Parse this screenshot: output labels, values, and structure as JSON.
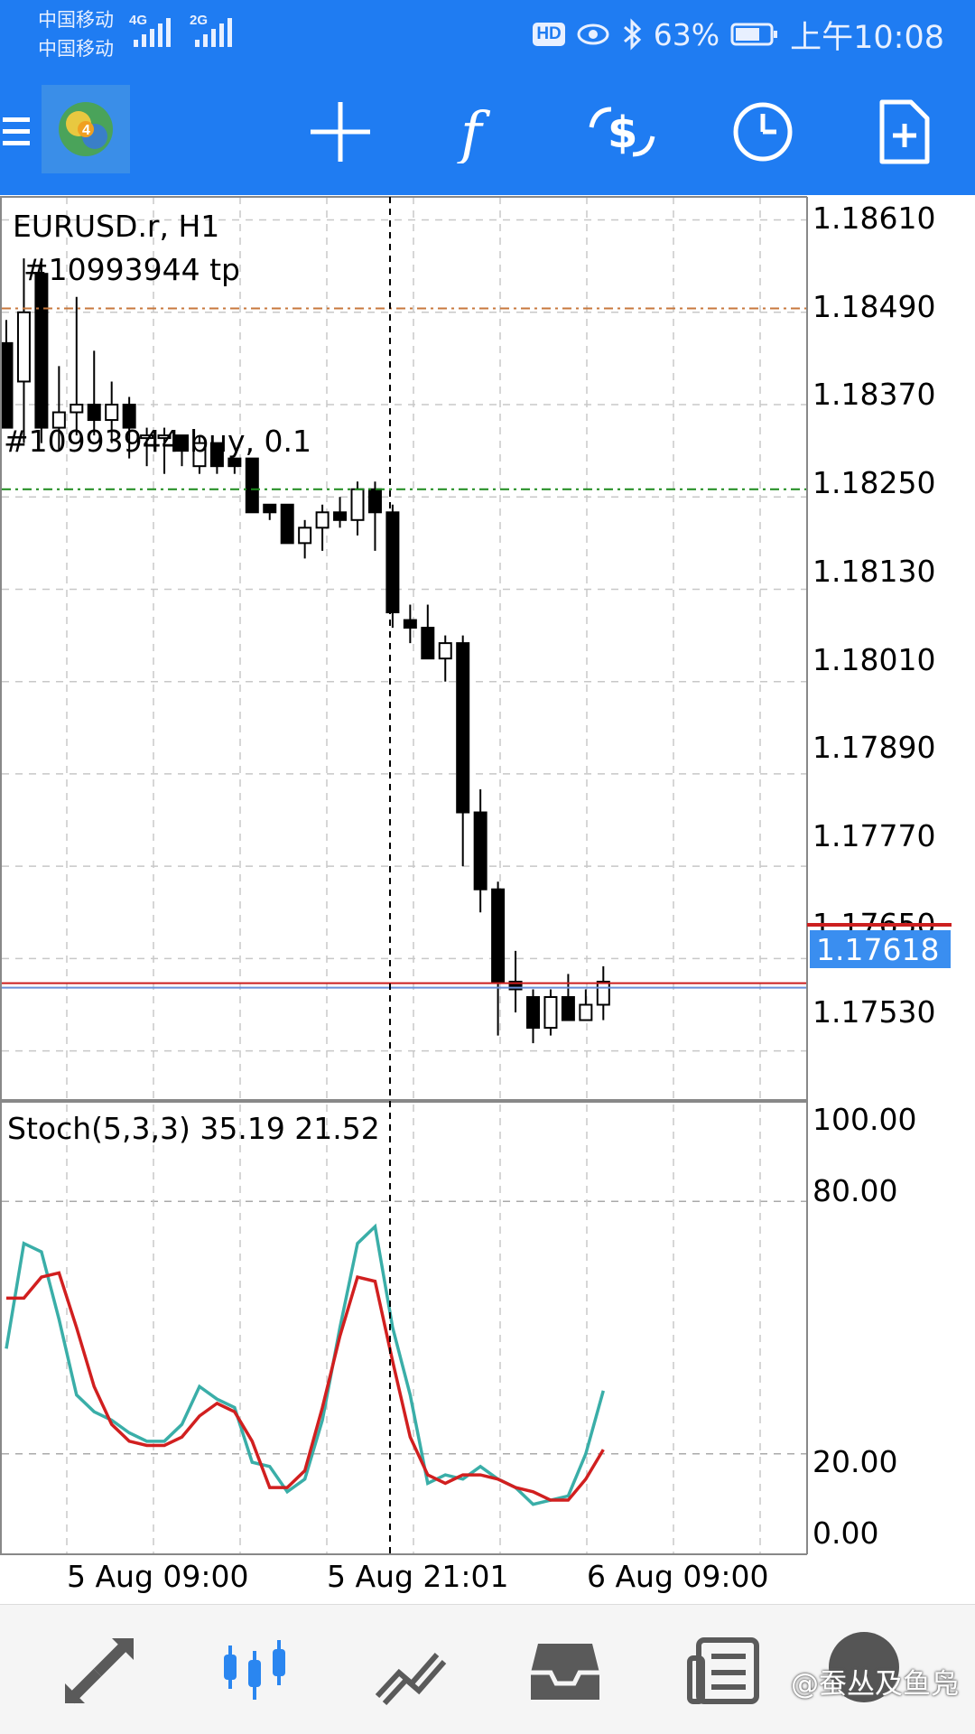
{
  "status_bar": {
    "carrier_1": "中国移动",
    "carrier_2": "中国移动",
    "network_1": "4G",
    "network_2": "2G",
    "hd_badge": "HD",
    "battery_percent": "63%",
    "time": "上午10:08"
  },
  "toolbar": {
    "items": [
      "menu",
      "app-logo",
      "crosshair",
      "indicators",
      "trade",
      "timeframe",
      "new-order"
    ]
  },
  "chart": {
    "symbol_title": "EURUSD.r, H1",
    "tp_label": "#10993944 tp",
    "order_label": "#10993944 buy, 0.1",
    "current_price": "1.17618",
    "price_ticks": [
      "1.18610",
      "1.18490",
      "1.18370",
      "1.18250",
      "1.18130",
      "1.18010",
      "1.17890",
      "1.17770",
      "1.17650",
      "1.17530"
    ],
    "indicator_label": "Stoch(5,3,3) 35.19 21.52",
    "stoch_ticks": [
      "100.00",
      "80.00",
      "20.00",
      "0.00"
    ],
    "time_labels": [
      "5 Aug 09:00",
      "5 Aug 21:01",
      "6 Aug 09:00"
    ],
    "colors": {
      "tp_line": "#c8783c",
      "order_line": "#1c8a1c",
      "bid_line": "#cc1f1f",
      "ask_line": "#6a8fd8",
      "price_tag": "#3a8ef0",
      "stoch_main": "#3aaea8",
      "stoch_signal": "#d11f1f"
    }
  },
  "bottom_nav": {
    "items": [
      "quotes",
      "chart",
      "trade",
      "history",
      "news"
    ],
    "active": "chart",
    "watermark": "@蚕丛及鱼凫"
  },
  "chart_data": {
    "type": "candlestick",
    "symbol": "EURUSD.r",
    "timeframe": "H1",
    "candles": [
      {
        "o": 1.1845,
        "h": 1.1848,
        "l": 1.1834,
        "c": 1.1834
      },
      {
        "o": 1.184,
        "h": 1.1856,
        "l": 1.1832,
        "c": 1.1849
      },
      {
        "o": 1.1854,
        "h": 1.1856,
        "l": 1.1832,
        "c": 1.1834
      },
      {
        "o": 1.1834,
        "h": 1.1842,
        "l": 1.1831,
        "c": 1.1836
      },
      {
        "o": 1.1836,
        "h": 1.1851,
        "l": 1.1833,
        "c": 1.1837
      },
      {
        "o": 1.1837,
        "h": 1.1844,
        "l": 1.1833,
        "c": 1.1835
      },
      {
        "o": 1.1835,
        "h": 1.184,
        "l": 1.1832,
        "c": 1.1837
      },
      {
        "o": 1.1837,
        "h": 1.1838,
        "l": 1.183,
        "c": 1.1834
      },
      {
        "o": 1.1833,
        "h": 1.1834,
        "l": 1.1829,
        "c": 1.1833
      },
      {
        "o": 1.1833,
        "h": 1.1834,
        "l": 1.1828,
        "c": 1.1833
      },
      {
        "o": 1.1833,
        "h": 1.1833,
        "l": 1.1829,
        "c": 1.1831
      },
      {
        "o": 1.1829,
        "h": 1.1833,
        "l": 1.1828,
        "c": 1.1832
      },
      {
        "o": 1.1832,
        "h": 1.1832,
        "l": 1.1828,
        "c": 1.1829
      },
      {
        "o": 1.183,
        "h": 1.183,
        "l": 1.1828,
        "c": 1.1829
      },
      {
        "o": 1.183,
        "h": 1.183,
        "l": 1.1823,
        "c": 1.1823
      },
      {
        "o": 1.1824,
        "h": 1.1824,
        "l": 1.1822,
        "c": 1.1823
      },
      {
        "o": 1.1824,
        "h": 1.1824,
        "l": 1.1819,
        "c": 1.1819
      },
      {
        "o": 1.1819,
        "h": 1.1822,
        "l": 1.1817,
        "c": 1.1821
      },
      {
        "o": 1.1821,
        "h": 1.1824,
        "l": 1.1818,
        "c": 1.1823
      },
      {
        "o": 1.1823,
        "h": 1.1825,
        "l": 1.1821,
        "c": 1.1822
      },
      {
        "o": 1.1822,
        "h": 1.1827,
        "l": 1.182,
        "c": 1.1826
      },
      {
        "o": 1.1826,
        "h": 1.1827,
        "l": 1.1818,
        "c": 1.1823
      },
      {
        "o": 1.1823,
        "h": 1.1824,
        "l": 1.1808,
        "c": 1.181
      },
      {
        "o": 1.1809,
        "h": 1.1811,
        "l": 1.1806,
        "c": 1.1808
      },
      {
        "o": 1.1808,
        "h": 1.1811,
        "l": 1.1804,
        "c": 1.1804
      },
      {
        "o": 1.1804,
        "h": 1.1807,
        "l": 1.1801,
        "c": 1.1806
      },
      {
        "o": 1.1806,
        "h": 1.1807,
        "l": 1.1777,
        "c": 1.1784
      },
      {
        "o": 1.1784,
        "h": 1.1787,
        "l": 1.1771,
        "c": 1.1774
      },
      {
        "o": 1.1774,
        "h": 1.1775,
        "l": 1.1755,
        "c": 1.1762
      },
      {
        "o": 1.1762,
        "h": 1.1766,
        "l": 1.1758,
        "c": 1.1761
      },
      {
        "o": 1.176,
        "h": 1.1761,
        "l": 1.1754,
        "c": 1.1756
      },
      {
        "o": 1.1756,
        "h": 1.1761,
        "l": 1.1755,
        "c": 1.176
      },
      {
        "o": 1.176,
        "h": 1.1763,
        "l": 1.1757,
        "c": 1.1757
      },
      {
        "o": 1.1757,
        "h": 1.1761,
        "l": 1.1757,
        "c": 1.1759
      },
      {
        "o": 1.1759,
        "h": 1.1764,
        "l": 1.1757,
        "c": 1.1762
      }
    ],
    "y_range": [
      1.17465,
      1.1864
    ],
    "tp_level": 1.18495,
    "order_level": 1.1826,
    "bid_level": 1.17618,
    "stochastic": {
      "params": "5,3,3",
      "main": 35.19,
      "signal": 21.52,
      "y_range": [
        0,
        100
      ],
      "levels": [
        80,
        20
      ],
      "main_series": [
        45,
        70,
        68,
        52,
        34,
        30,
        28,
        25,
        23,
        23,
        27,
        36,
        33,
        31,
        18,
        17,
        11,
        14,
        28,
        50,
        70,
        74,
        50,
        34,
        13,
        15,
        14,
        17,
        14,
        12,
        8,
        9,
        10,
        20,
        35
      ],
      "signal_series": [
        57,
        57,
        62,
        63,
        50,
        36,
        27,
        23,
        22,
        22,
        24,
        29,
        32,
        30,
        23,
        12,
        12,
        16,
        31,
        48,
        62,
        61,
        42,
        24,
        15,
        13,
        15,
        15,
        14,
        12,
        11,
        9,
        9,
        14,
        21
      ]
    }
  }
}
